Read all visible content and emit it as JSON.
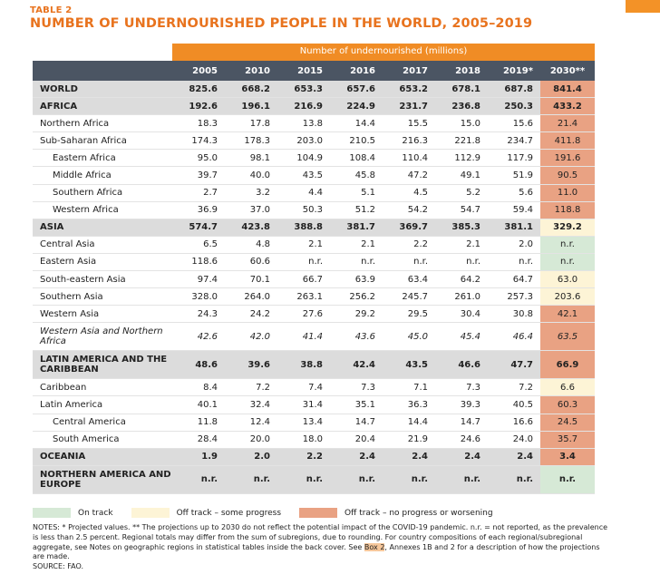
{
  "table_label": "TABLE 2",
  "title": "NUMBER OF UNDERNOURISHED PEOPLE IN THE WORLD, 2005–2019",
  "header_span": "Number of undernourished (millions)",
  "columns": [
    "2005",
    "2010",
    "2015",
    "2016",
    "2017",
    "2018",
    "2019*",
    "2030**"
  ],
  "rows": [
    {
      "name": "WORLD",
      "type": "world",
      "values": [
        "825.6",
        "668.2",
        "653.3",
        "657.6",
        "653.2",
        "678.1",
        "687.8"
      ],
      "proj": "841.4",
      "status": "off"
    },
    {
      "name": "AFRICA",
      "type": "region",
      "values": [
        "192.6",
        "196.1",
        "216.9",
        "224.9",
        "231.7",
        "236.8",
        "250.3"
      ],
      "proj": "433.2",
      "status": "off"
    },
    {
      "name": "Northern Africa",
      "type": "sub",
      "values": [
        "18.3",
        "17.8",
        "13.8",
        "14.4",
        "15.5",
        "15.0",
        "15.6"
      ],
      "proj": "21.4",
      "status": "off"
    },
    {
      "name": "Sub-Saharan Africa",
      "type": "sub",
      "values": [
        "174.3",
        "178.3",
        "203.0",
        "210.5",
        "216.3",
        "221.8",
        "234.7"
      ],
      "proj": "411.8",
      "status": "off"
    },
    {
      "name": "Eastern Africa",
      "type": "subsub",
      "values": [
        "95.0",
        "98.1",
        "104.9",
        "108.4",
        "110.4",
        "112.9",
        "117.9"
      ],
      "proj": "191.6",
      "status": "off"
    },
    {
      "name": "Middle Africa",
      "type": "subsub",
      "values": [
        "39.7",
        "40.0",
        "43.5",
        "45.8",
        "47.2",
        "49.1",
        "51.9"
      ],
      "proj": "90.5",
      "status": "off"
    },
    {
      "name": "Southern Africa",
      "type": "subsub",
      "values": [
        "2.7",
        "3.2",
        "4.4",
        "5.1",
        "4.5",
        "5.2",
        "5.6"
      ],
      "proj": "11.0",
      "status": "off"
    },
    {
      "name": "Western Africa",
      "type": "subsub",
      "values": [
        "36.9",
        "37.0",
        "50.3",
        "51.2",
        "54.2",
        "54.7",
        "59.4"
      ],
      "proj": "118.8",
      "status": "off"
    },
    {
      "name": "ASIA",
      "type": "region",
      "values": [
        "574.7",
        "423.8",
        "388.8",
        "381.7",
        "369.7",
        "385.3",
        "381.1"
      ],
      "proj": "329.2",
      "status": "some"
    },
    {
      "name": "Central Asia",
      "type": "sub",
      "values": [
        "6.5",
        "4.8",
        "2.1",
        "2.1",
        "2.2",
        "2.1",
        "2.0"
      ],
      "proj": "n.r.",
      "status": "on"
    },
    {
      "name": "Eastern Asia",
      "type": "sub",
      "values": [
        "118.6",
        "60.6",
        "n.r.",
        "n.r.",
        "n.r.",
        "n.r.",
        "n.r."
      ],
      "proj": "n.r.",
      "status": "on"
    },
    {
      "name": "South-eastern Asia",
      "type": "sub",
      "values": [
        "97.4",
        "70.1",
        "66.7",
        "63.9",
        "63.4",
        "64.2",
        "64.7"
      ],
      "proj": "63.0",
      "status": "some"
    },
    {
      "name": "Southern Asia",
      "type": "sub",
      "values": [
        "328.0",
        "264.0",
        "263.1",
        "256.2",
        "245.7",
        "261.0",
        "257.3"
      ],
      "proj": "203.6",
      "status": "some"
    },
    {
      "name": "Western Asia",
      "type": "sub",
      "values": [
        "24.3",
        "24.2",
        "27.6",
        "29.2",
        "29.5",
        "30.4",
        "30.8"
      ],
      "proj": "42.1",
      "status": "off"
    },
    {
      "name": "Western Asia and Northern Africa",
      "type": "italic",
      "values": [
        "42.6",
        "42.0",
        "41.4",
        "43.6",
        "45.0",
        "45.4",
        "46.4"
      ],
      "proj": "63.5",
      "status": "off"
    },
    {
      "name": "LATIN AMERICA AND THE CARIBBEAN",
      "type": "region-tall",
      "values": [
        "48.6",
        "39.6",
        "38.8",
        "42.4",
        "43.5",
        "46.6",
        "47.7"
      ],
      "proj": "66.9",
      "status": "off"
    },
    {
      "name": "Caribbean",
      "type": "sub",
      "values": [
        "8.4",
        "7.2",
        "7.4",
        "7.3",
        "7.1",
        "7.3",
        "7.2"
      ],
      "proj": "6.6",
      "status": "some"
    },
    {
      "name": "Latin America",
      "type": "sub",
      "values": [
        "40.1",
        "32.4",
        "31.4",
        "35.1",
        "36.3",
        "39.3",
        "40.5"
      ],
      "proj": "60.3",
      "status": "off"
    },
    {
      "name": "Central America",
      "type": "subsub",
      "values": [
        "11.8",
        "12.4",
        "13.4",
        "14.7",
        "14.4",
        "14.7",
        "16.6"
      ],
      "proj": "24.5",
      "status": "off"
    },
    {
      "name": "South America",
      "type": "subsub",
      "values": [
        "28.4",
        "20.0",
        "18.0",
        "20.4",
        "21.9",
        "24.6",
        "24.0"
      ],
      "proj": "35.7",
      "status": "off"
    },
    {
      "name": "OCEANIA",
      "type": "region",
      "values": [
        "1.9",
        "2.0",
        "2.2",
        "2.4",
        "2.4",
        "2.4",
        "2.4"
      ],
      "proj": "3.4",
      "status": "off"
    },
    {
      "name": "NORTHERN AMERICA AND EUROPE",
      "type": "region-tall",
      "values": [
        "n.r.",
        "n.r.",
        "n.r.",
        "n.r.",
        "n.r.",
        "n.r.",
        "n.r."
      ],
      "proj": "n.r.",
      "status": "on"
    }
  ],
  "legend": [
    {
      "key": "on",
      "label": "On track",
      "color": "#d6e9d6"
    },
    {
      "key": "some",
      "label": "Off track – some progress",
      "color": "#fdf4d6"
    },
    {
      "key": "off",
      "label": "Off track – no progress or worsening",
      "color": "#e9a283"
    }
  ],
  "notes": {
    "part1": "NOTES: * Projected values. ** The projections up to 2030 do not reflect the potential impact of the COVID-19 pandemic. n.r. = not reported, as the prevalence is less than 2.5 percent. Regional totals may differ from the sum of subregions, due to rounding. For country compositions of each regional/subregional aggregate, see Notes on geographic regions in statistical tables inside the back cover. See ",
    "link": "Box 2",
    "part2": ", Annexes 1B and 2 for a description of how the projections are made.",
    "source": "SOURCE: FAO."
  }
}
